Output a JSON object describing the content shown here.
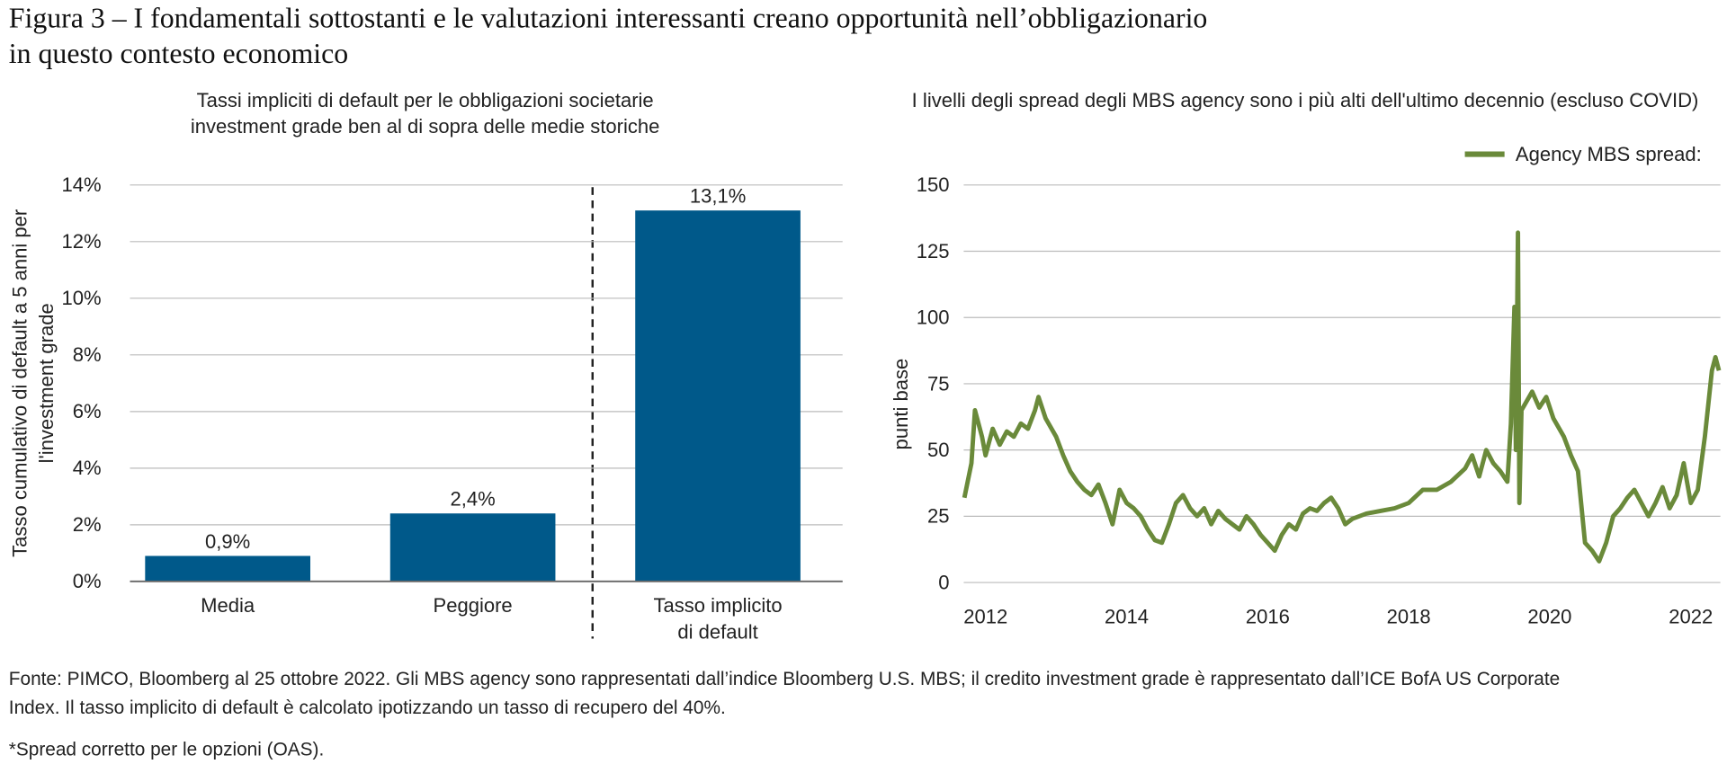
{
  "title": "Figura 3 – I fondamentali sottostanti e le valutazioni interessanti creano opportunità nell’obbligazionario\nin questo contesto economico",
  "chart_data": [
    {
      "type": "bar",
      "title": "Tassi impliciti di default per le obbligazioni societarie\ninvestment grade ben al di sopra delle medie storiche",
      "y_label": "Tasso cumulativo di default a 5 anni per\nl'investment grade",
      "categories": [
        "Media",
        "Peggiore",
        "Tasso implicito\ndi default"
      ],
      "values": [
        0.9,
        2.4,
        13.1
      ],
      "value_labels": [
        "0,9%",
        "2,4%",
        "13,1%"
      ],
      "color": "#00598a",
      "ylim": [
        0,
        14
      ],
      "yticks": [
        {
          "value": 0,
          "label": "0%"
        },
        {
          "value": 2,
          "label": "2%"
        },
        {
          "value": 4,
          "label": "4%"
        },
        {
          "value": 6,
          "label": "6%"
        },
        {
          "value": 8,
          "label": "8%"
        },
        {
          "value": 10,
          "label": "10%"
        },
        {
          "value": 12,
          "label": "12%"
        },
        {
          "value": 14,
          "label": "14%"
        }
      ],
      "grid": true
    },
    {
      "type": "line",
      "title": "I livelli degli spread degli MBS agency sono i più alti dell'ultimo decennio (escluso COVID)",
      "y_label": "punti base",
      "legend": "top-right",
      "x": [
        2011.7,
        2011.8,
        2011.85,
        2011.95,
        2012.0,
        2012.1,
        2012.2,
        2012.3,
        2012.4,
        2012.5,
        2012.6,
        2012.7,
        2012.75,
        2012.85,
        2013.0,
        2013.1,
        2013.2,
        2013.3,
        2013.4,
        2013.5,
        2013.6,
        2013.7,
        2013.8,
        2013.9,
        2014.0,
        2014.1,
        2014.2,
        2014.3,
        2014.4,
        2014.5,
        2014.6,
        2014.7,
        2014.8,
        2014.9,
        2015.0,
        2015.1,
        2015.2,
        2015.3,
        2015.4,
        2015.5,
        2015.6,
        2015.7,
        2015.8,
        2015.9,
        2016.0,
        2016.1,
        2016.2,
        2016.3,
        2016.4,
        2016.5,
        2016.6,
        2016.7,
        2016.8,
        2016.9,
        2017.0,
        2017.1,
        2017.2,
        2017.4,
        2017.6,
        2017.8,
        2018.0,
        2018.2,
        2018.4,
        2018.6,
        2018.8,
        2018.9,
        2019.0,
        2019.1,
        2019.2,
        2019.3,
        2019.4,
        2019.45,
        2019.5,
        2019.52,
        2019.55,
        2019.57,
        2019.6,
        2019.75,
        2019.85,
        2019.95,
        2020.05,
        2020.2,
        2020.3,
        2020.4,
        2020.5,
        2020.6,
        2020.7,
        2020.8,
        2020.9,
        2021.0,
        2021.1,
        2021.2,
        2021.3,
        2021.4,
        2021.5,
        2021.6,
        2021.7,
        2021.8,
        2021.9,
        2022.0,
        2022.1,
        2022.2,
        2022.3,
        2022.35,
        2022.4
      ],
      "series": [
        {
          "name": "Agency MBS spread:",
          "color": "#6a8a3a",
          "values": [
            32,
            45,
            65,
            55,
            48,
            58,
            52,
            57,
            55,
            60,
            58,
            65,
            70,
            62,
            55,
            48,
            42,
            38,
            35,
            33,
            37,
            30,
            22,
            35,
            30,
            28,
            25,
            20,
            16,
            15,
            22,
            30,
            33,
            28,
            25,
            28,
            22,
            27,
            24,
            22,
            20,
            25,
            22,
            18,
            15,
            12,
            18,
            22,
            20,
            26,
            28,
            27,
            30,
            32,
            28,
            22,
            24,
            26,
            27,
            28,
            30,
            35,
            35,
            38,
            43,
            48,
            40,
            50,
            45,
            42,
            38,
            60,
            104,
            50,
            132,
            30,
            65,
            72,
            66,
            70,
            62,
            55,
            48,
            42,
            15,
            12,
            8,
            15,
            25,
            28,
            32,
            35,
            30,
            25,
            30,
            36,
            28,
            33,
            45,
            30,
            35,
            55,
            80,
            85,
            80
          ]
        }
      ],
      "xlim": [
        2011.69,
        2022.42
      ],
      "xticks": [
        2012,
        2014,
        2016,
        2018,
        2020,
        2022
      ],
      "ylim": [
        0,
        150
      ],
      "yticks": [
        0,
        25,
        50,
        75,
        100,
        125,
        150
      ],
      "grid": true
    }
  ],
  "source": "Fonte: PIMCO, Bloomberg al 25 ottobre 2022. Gli MBS agency sono rappresentati dall’indice Bloomberg U.S. MBS; il credito investment grade è rappresentato dall’ICE BofA US Corporate\nIndex. Il tasso implicito di default è calcolato ipotizzando un tasso di recupero del 40%.",
  "note": "*Spread corretto per le opzioni (OAS)."
}
